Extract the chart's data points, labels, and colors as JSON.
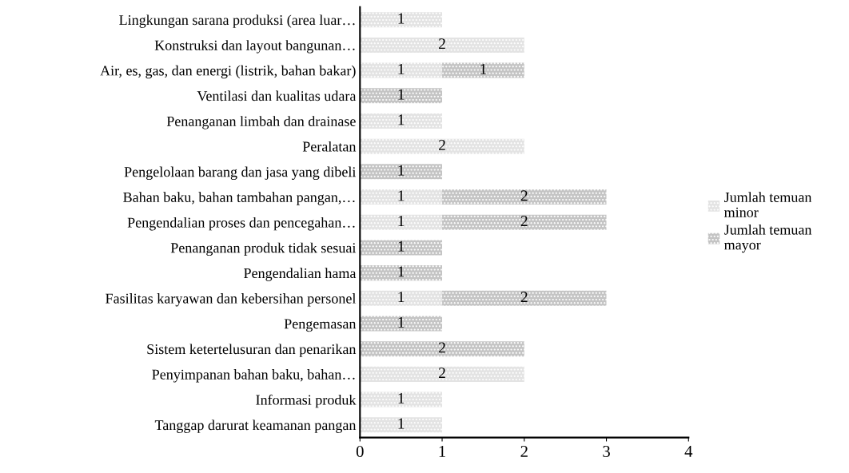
{
  "chart_data": {
    "type": "bar",
    "orientation": "horizontal",
    "stacked": true,
    "categories": [
      "Lingkungan sarana produksi (area luar…",
      "Konstruksi dan layout bangunan…",
      "Air, es, gas, dan energi (listrik, bahan bakar)",
      "Ventilasi dan kualitas udara",
      "Penanganan limbah dan drainase",
      "Peralatan",
      "Pengelolaan barang dan jasa yang dibeli",
      "Bahan baku, bahan tambahan pangan,…",
      "Pengendalian proses dan pencegahan…",
      "Penanganan produk tidak sesuai",
      "Pengendalian hama",
      "Fasilitas karyawan dan kebersihan personel",
      "Pengemasan",
      "Sistem ketertelusuran dan penarikan",
      "Penyimpanan bahan baku, bahan…",
      "Informasi produk",
      "Tanggap darurat keamanan pangan"
    ],
    "series": [
      {
        "name": "Jumlah temuan minor",
        "color": "#e3e3e3",
        "values": [
          1,
          2,
          1,
          null,
          1,
          2,
          null,
          1,
          1,
          null,
          null,
          1,
          null,
          null,
          2,
          1,
          1
        ]
      },
      {
        "name": "Jumlah temuan mayor",
        "color": "#c4c4c4",
        "values": [
          null,
          null,
          1,
          1,
          null,
          null,
          1,
          2,
          2,
          1,
          1,
          2,
          1,
          2,
          null,
          null,
          null
        ]
      }
    ],
    "xlim": [
      0,
      4
    ],
    "xticks": [
      0,
      1,
      2,
      3,
      4
    ],
    "data_labels": true,
    "grid": false,
    "legend": "right"
  }
}
